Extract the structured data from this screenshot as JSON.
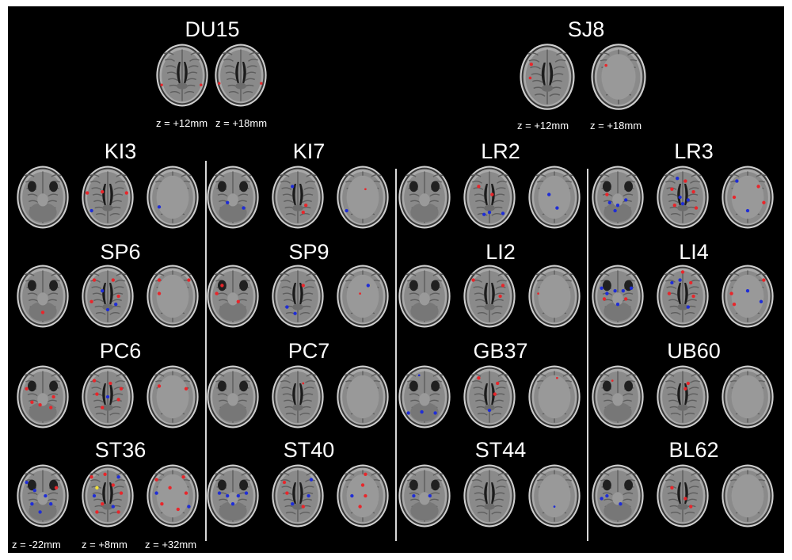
{
  "figure": {
    "background": "#000000",
    "activation_colors": {
      "positive": "#e8262b",
      "negative": "#1f2dd6",
      "overlap": "#f2e23a"
    },
    "panels": [
      {
        "id": "du15",
        "label": "DU15",
        "z_labels": [
          "z = +12mm",
          "z = +18mm"
        ]
      },
      {
        "id": "sj8",
        "label": "SJ8",
        "z_labels": [
          "z = +12mm",
          "z = +18mm"
        ]
      },
      {
        "id": "ki3",
        "label": "KI3"
      },
      {
        "id": "ki7",
        "label": "KI7"
      },
      {
        "id": "lr2",
        "label": "LR2"
      },
      {
        "id": "lr3",
        "label": "LR3"
      },
      {
        "id": "sp6",
        "label": "SP6"
      },
      {
        "id": "sp9",
        "label": "SP9"
      },
      {
        "id": "li2",
        "label": "LI2"
      },
      {
        "id": "li4",
        "label": "LI4"
      },
      {
        "id": "pc6",
        "label": "PC6"
      },
      {
        "id": "pc7",
        "label": "PC7"
      },
      {
        "id": "gb37",
        "label": "GB37"
      },
      {
        "id": "ub60",
        "label": "UB60"
      },
      {
        "id": "st36",
        "label": "ST36",
        "z_labels": [
          "z = -22mm",
          "z = +8mm",
          "z = +32mm"
        ]
      },
      {
        "id": "st40",
        "label": "ST40"
      },
      {
        "id": "st44",
        "label": "ST44"
      },
      {
        "id": "bl62",
        "label": "BL62"
      }
    ]
  }
}
